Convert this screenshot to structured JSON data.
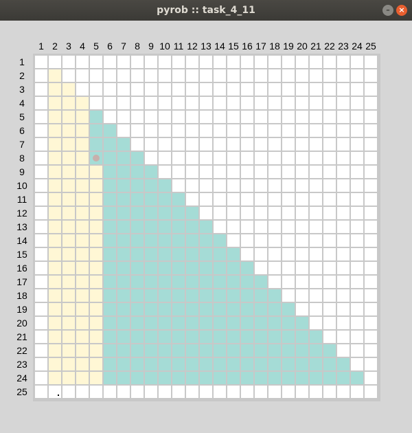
{
  "window": {
    "title": "pyrob :: task_4_11",
    "minimize_glyph": "–",
    "close_glyph": "×"
  },
  "grid": {
    "rows": 25,
    "cols": 25,
    "col_labels": [
      "1",
      "2",
      "3",
      "4",
      "5",
      "6",
      "7",
      "8",
      "9",
      "10",
      "11",
      "12",
      "13",
      "14",
      "15",
      "16",
      "17",
      "18",
      "19",
      "20",
      "21",
      "22",
      "23",
      "24",
      "25"
    ],
    "row_labels": [
      "1",
      "2",
      "3",
      "4",
      "5",
      "6",
      "7",
      "8",
      "9",
      "10",
      "11",
      "12",
      "13",
      "14",
      "15",
      "16",
      "17",
      "18",
      "19",
      "20",
      "21",
      "22",
      "23",
      "24",
      "25"
    ],
    "colors": {
      "empty": "#ffffff",
      "filled": "#a5dcd6",
      "highlight": "#fff7d5",
      "grid_line": "#c8c8c8",
      "robot": "#c8b0ac"
    },
    "robot": {
      "row": 8,
      "col": 5
    },
    "marker": {
      "row": 25,
      "col": 2
    }
  }
}
